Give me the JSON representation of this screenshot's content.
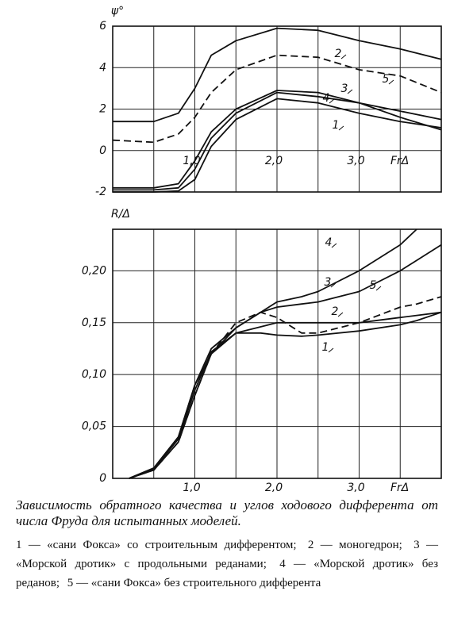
{
  "chart_data": [
    {
      "type": "line",
      "y_label": "ψ°",
      "x_label": "FrΔ",
      "x": [
        0,
        0.5,
        0.8,
        1.0,
        1.2,
        1.5,
        2.0,
        2.5,
        3.0,
        3.5,
        4.0
      ],
      "xlim": [
        0,
        4
      ],
      "ylim": [
        -2,
        6
      ],
      "xticks": [
        {
          "value": 1,
          "label": "1,0"
        },
        {
          "value": 2,
          "label": "2,0"
        },
        {
          "value": 3,
          "label": "3,0"
        }
      ],
      "minor_xticks": [
        0.5,
        1.5,
        2.5,
        3.5
      ],
      "yticks": [
        6,
        4,
        2,
        0,
        -2
      ],
      "grid": true,
      "series": [
        {
          "name": "1",
          "color": "#111111",
          "dashed": false,
          "values": [
            -2,
            -2,
            -1.95,
            -1.4,
            0.2,
            1.5,
            2.5,
            2.3,
            1.8,
            1.4,
            1.1
          ]
        },
        {
          "name": "2",
          "color": "#111111",
          "dashed": false,
          "values": [
            1.4,
            1.4,
            1.8,
            3.0,
            4.6,
            5.3,
            5.9,
            5.8,
            5.3,
            4.9,
            4.4
          ]
        },
        {
          "name": "3",
          "color": "#111111",
          "dashed": false,
          "values": [
            -1.9,
            -1.9,
            -1.8,
            -0.9,
            0.6,
            1.8,
            2.8,
            2.6,
            2.3,
            1.9,
            1.5
          ]
        },
        {
          "name": "4",
          "color": "#111111",
          "dashed": false,
          "values": [
            -1.8,
            -1.8,
            -1.6,
            -0.5,
            0.9,
            2.0,
            2.9,
            2.8,
            2.3,
            1.6,
            1.0
          ]
        },
        {
          "name": "5",
          "color": "#111111",
          "dashed": true,
          "values": [
            0.5,
            0.4,
            0.8,
            1.6,
            2.8,
            3.9,
            4.6,
            4.5,
            3.9,
            3.6,
            2.8
          ]
        }
      ]
    },
    {
      "type": "line",
      "y_label": "R/Δ",
      "x_label": "FrΔ",
      "x": [
        0.2,
        0.5,
        0.8,
        1.0,
        1.2,
        1.5,
        1.8,
        2.0,
        2.3,
        2.5,
        3.0,
        3.5,
        3.7,
        4.0
      ],
      "xlim": [
        0,
        4
      ],
      "ylim": [
        0,
        0.24
      ],
      "xticks": [
        {
          "value": 1,
          "label": "1,0"
        },
        {
          "value": 2,
          "label": "2,0"
        },
        {
          "value": 3,
          "label": "3,0"
        }
      ],
      "minor_xticks": [
        0.5,
        1.5,
        2.5,
        3.5
      ],
      "yticks": [
        0,
        {
          "value": 0.05,
          "label": "0,05"
        },
        {
          "value": 0.1,
          "label": "0,10"
        },
        {
          "value": 0.15,
          "label": "0,15"
        },
        {
          "value": 0.2,
          "label": "0,20"
        }
      ],
      "grid": true,
      "series": [
        {
          "name": "1",
          "color": "#111111",
          "dashed": false,
          "values": [
            0,
            0.008,
            0.035,
            0.08,
            0.12,
            0.14,
            0.14,
            0.138,
            0.137,
            0.138,
            0.142,
            0.148,
            0.152,
            0.16
          ]
        },
        {
          "name": "2",
          "color": "#111111",
          "dashed": false,
          "values": [
            0,
            0.009,
            0.038,
            0.085,
            0.122,
            0.14,
            0.146,
            0.15,
            0.15,
            0.15,
            0.15,
            0.155,
            0.157,
            0.16
          ]
        },
        {
          "name": "3",
          "color": "#111111",
          "dashed": false,
          "values": [
            0,
            0.01,
            0.04,
            0.09,
            0.125,
            0.145,
            0.16,
            0.165,
            0.168,
            0.17,
            0.18,
            0.2,
            0.21,
            0.225
          ]
        },
        {
          "name": "4",
          "color": "#111111",
          "dashed": false,
          "values": [
            0,
            0.01,
            0.04,
            0.09,
            0.12,
            0.145,
            0.16,
            0.17,
            0.175,
            0.18,
            0.2,
            0.225,
            0.24,
            null
          ]
        },
        {
          "name": "5",
          "color": "#111111",
          "dashed": true,
          "values": [
            0,
            0.008,
            0.035,
            0.08,
            0.12,
            0.15,
            0.16,
            0.155,
            0.14,
            0.14,
            0.15,
            0.165,
            0.168,
            0.175
          ]
        }
      ]
    }
  ],
  "caption": {
    "title": "Зависимость обратного качества и углов ходового дифферента от числа Фруда для испытанных моделей.",
    "items": [
      "1 — «сани Фокса» со строительным дифферентом;",
      "2 — моногедрон;",
      "3 — «Морской дротик» с продольными реданами;",
      "4 — «Морской дротик» без реданов;",
      "5 — «сани Фокса» без строительного дифферента"
    ]
  }
}
